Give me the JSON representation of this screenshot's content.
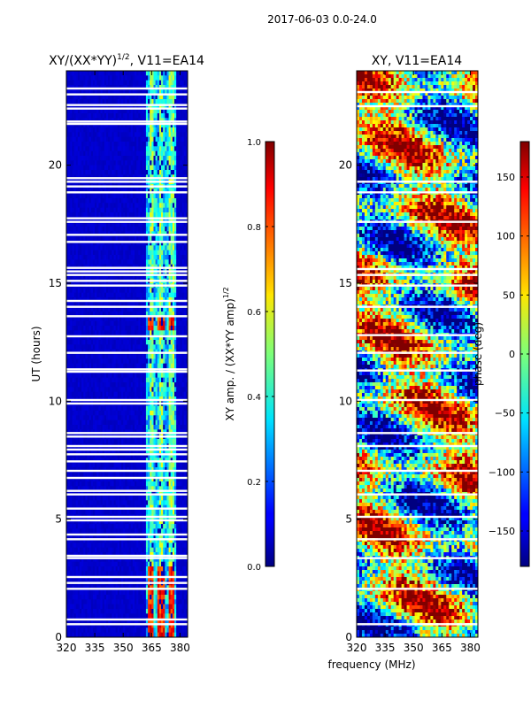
{
  "suptitle": "2017-06-03 0.0-24.0",
  "xlabel": "frequency (MHz)",
  "chart_data": [
    {
      "type": "heatmap",
      "title_main": "XY/(XX*YY)",
      "title_exp": "1/2",
      "title_tail": ", V11=EA14",
      "ylabel": "UT (hours)",
      "xlim": [
        320,
        384
      ],
      "ylim": [
        0,
        24
      ],
      "xticks": [
        320,
        335,
        350,
        365,
        380
      ],
      "yticks": [
        0,
        5,
        10,
        15,
        20
      ],
      "colorbar": {
        "label_main": "XY amp. / (XX*YY amp)",
        "label_exp": "1/2",
        "vmin": 0.0,
        "vmax": 1.0,
        "ticks": [
          "0.0",
          "0.2",
          "0.4",
          "0.6",
          "0.8",
          "1.0"
        ],
        "tick_values": [
          0.0,
          0.2,
          0.4,
          0.6,
          0.8,
          1.0
        ]
      },
      "active_band_mhz": [
        362,
        378
      ],
      "gap_hours": [
        0.55,
        0.75,
        2.05,
        2.3,
        2.55,
        3.35,
        3.45,
        4.15,
        4.35,
        4.95,
        5.1,
        5.45,
        6.05,
        6.2,
        6.75,
        7.05,
        7.45,
        7.75,
        7.95,
        8.1,
        8.5,
        8.65,
        9.9,
        10.05,
        11.25,
        11.35,
        12.05,
        12.75,
        13.6,
        14.0,
        14.25,
        14.9,
        15.1,
        15.35,
        15.5,
        15.65,
        16.75,
        17.05,
        17.6,
        17.75,
        18.85,
        19.1,
        19.3,
        19.45,
        21.75,
        21.85,
        22.4,
        22.55,
        23.0,
        23.25
      ]
    },
    {
      "type": "heatmap",
      "title_main": "XY, V11=EA14",
      "xlim": [
        320,
        384
      ],
      "ylim": [
        0,
        24
      ],
      "xticks": [
        320,
        335,
        350,
        365,
        380
      ],
      "yticks": [
        0,
        5,
        10,
        15,
        20
      ],
      "colorbar": {
        "label_main": "phase (deg)",
        "vmin": -180,
        "vmax": 180,
        "ticks": [
          "150",
          "100",
          "50",
          "0",
          "−50",
          "−100",
          "−150"
        ],
        "tick_values": [
          150,
          100,
          50,
          0,
          -50,
          -100,
          -150
        ]
      },
      "gap_hours": [
        0.55,
        2.05,
        3.35,
        4.15,
        5.1,
        6.05,
        7.05,
        8.1,
        8.65,
        10.05,
        11.3,
        12.05,
        12.8,
        14.0,
        14.9,
        15.35,
        15.6,
        17.6,
        18.85,
        19.3,
        22.5,
        23.1
      ]
    }
  ]
}
